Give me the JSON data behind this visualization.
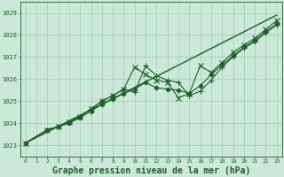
{
  "background_color": "#cbe8d8",
  "grid_color": "#a0ccb8",
  "line_color": "#1e5c2a",
  "xlabel": "Graphe pression niveau de la mer (hPa)",
  "xlabel_fontsize": 7,
  "xlim": [
    -0.5,
    23.5
  ],
  "ylim": [
    1022.5,
    1029.5
  ],
  "yticks": [
    1023,
    1024,
    1025,
    1026,
    1027,
    1028,
    1029
  ],
  "xticks": [
    0,
    1,
    2,
    3,
    4,
    5,
    6,
    7,
    8,
    9,
    10,
    11,
    12,
    13,
    14,
    15,
    16,
    17,
    18,
    19,
    20,
    21,
    22,
    23
  ],
  "series": [
    {
      "x": [
        0,
        23
      ],
      "y": [
        1023.1,
        1028.9
      ],
      "marker": null,
      "markersize": 0,
      "linewidth": 1.0
    },
    {
      "x": [
        0,
        2,
        3,
        4,
        5,
        6,
        7,
        8,
        9,
        10,
        11,
        12,
        13,
        14,
        15,
        16,
        17,
        18,
        19,
        20,
        21,
        22,
        23
      ],
      "y": [
        1023.1,
        1023.7,
        1023.85,
        1024.0,
        1024.25,
        1024.55,
        1024.85,
        1025.1,
        1025.35,
        1025.55,
        1025.85,
        1025.6,
        1025.55,
        1025.5,
        1025.35,
        1025.7,
        1026.2,
        1026.65,
        1027.05,
        1027.45,
        1027.75,
        1028.15,
        1028.5
      ],
      "marker": "D",
      "markersize": 2.5,
      "linewidth": 0.8
    },
    {
      "x": [
        0,
        2,
        3,
        4,
        5,
        6,
        7,
        8,
        9,
        10,
        11,
        12,
        13,
        14,
        15,
        16,
        17,
        18,
        19,
        20,
        21,
        22,
        23
      ],
      "y": [
        1023.1,
        1023.7,
        1023.85,
        1024.05,
        1024.3,
        1024.65,
        1025.0,
        1025.25,
        1025.55,
        1025.4,
        1026.6,
        1026.15,
        1025.95,
        1025.85,
        1025.25,
        1025.45,
        1025.95,
        1026.55,
        1027.0,
        1027.4,
        1027.7,
        1028.1,
        1028.45
      ],
      "marker": "+",
      "markersize": 5,
      "linewidth": 0.8
    },
    {
      "x": [
        0,
        2,
        3,
        4,
        5,
        6,
        7,
        8,
        9,
        10,
        11,
        12,
        13,
        14,
        15,
        16,
        17,
        18,
        19,
        20,
        21,
        22,
        23
      ],
      "y": [
        1023.1,
        1023.7,
        1023.85,
        1024.05,
        1024.3,
        1024.65,
        1025.0,
        1025.25,
        1025.55,
        1026.55,
        1026.2,
        1025.95,
        1025.85,
        1025.15,
        1025.35,
        1026.6,
        1026.3,
        1026.75,
        1027.2,
        1027.55,
        1027.85,
        1028.25,
        1028.65
      ],
      "marker": "x",
      "markersize": 4,
      "linewidth": 0.8
    }
  ]
}
